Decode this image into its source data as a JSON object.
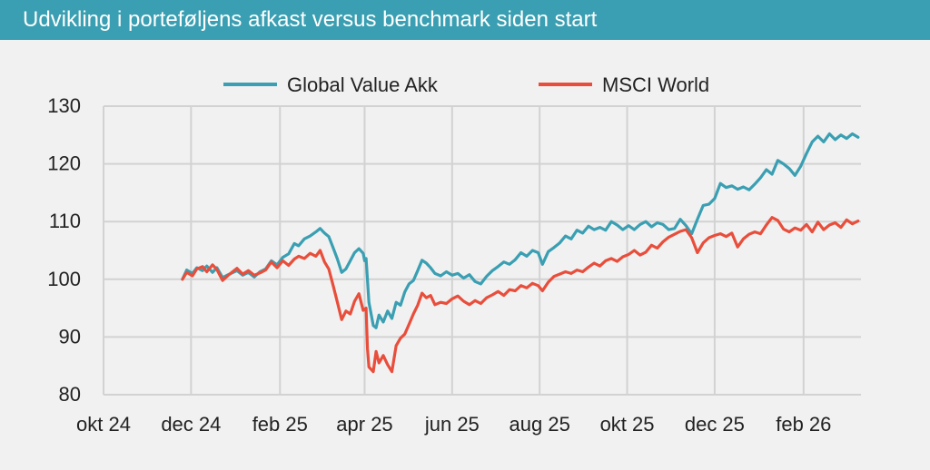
{
  "header": {
    "title": "Udvikling i porteføljens afkast versus benchmark siden start"
  },
  "chart_data": {
    "type": "line",
    "title": "Udvikling i porteføljens afkast versus benchmark siden start",
    "xlabel": "",
    "ylabel": "",
    "ylim": [
      80,
      130
    ],
    "y_ticks": [
      80,
      90,
      100,
      110,
      120,
      130
    ],
    "x_range": [
      "2024-10-01",
      "2026-03-13"
    ],
    "x_ticks": [
      {
        "date": "2024-10-01",
        "label": "okt 24"
      },
      {
        "date": "2024-12-01",
        "label": "dec 24"
      },
      {
        "date": "2025-02-01",
        "label": "feb 25"
      },
      {
        "date": "2025-04-01",
        "label": "apr 25"
      },
      {
        "date": "2025-06-01",
        "label": "jun 25"
      },
      {
        "date": "2025-08-01",
        "label": "aug 25"
      },
      {
        "date": "2025-10-01",
        "label": "okt 25"
      },
      {
        "date": "2025-12-01",
        "label": "dec 25"
      },
      {
        "date": "2026-02-01",
        "label": "feb 26"
      }
    ],
    "grid": true,
    "legend": "top-center",
    "series": [
      {
        "name": "Global Value Akk",
        "color": "#3a9fb2",
        "points": [
          [
            "2024-11-25",
            100.0
          ],
          [
            "2024-11-28",
            101.6
          ],
          [
            "2024-12-02",
            101.0
          ],
          [
            "2024-12-05",
            102.0
          ],
          [
            "2024-12-09",
            101.5
          ],
          [
            "2024-12-12",
            102.3
          ],
          [
            "2024-12-16",
            101.2
          ],
          [
            "2024-12-19",
            102.0
          ],
          [
            "2024-12-23",
            100.3
          ],
          [
            "2024-12-27",
            100.8
          ],
          [
            "2025-01-02",
            101.5
          ],
          [
            "2025-01-06",
            100.7
          ],
          [
            "2025-01-10",
            101.2
          ],
          [
            "2025-01-14",
            100.4
          ],
          [
            "2025-01-18",
            101.3
          ],
          [
            "2025-01-22",
            101.8
          ],
          [
            "2025-01-26",
            103.2
          ],
          [
            "2025-01-30",
            102.5
          ],
          [
            "2025-02-03",
            103.8
          ],
          [
            "2025-02-07",
            104.4
          ],
          [
            "2025-02-11",
            106.2
          ],
          [
            "2025-02-14",
            105.8
          ],
          [
            "2025-02-18",
            107.0
          ],
          [
            "2025-02-22",
            107.5
          ],
          [
            "2025-02-26",
            108.2
          ],
          [
            "2025-03-01",
            108.8
          ],
          [
            "2025-03-04",
            108.0
          ],
          [
            "2025-03-07",
            107.4
          ],
          [
            "2025-03-10",
            105.5
          ],
          [
            "2025-03-13",
            103.5
          ],
          [
            "2025-03-16",
            101.2
          ],
          [
            "2025-03-19",
            101.8
          ],
          [
            "2025-03-22",
            103.2
          ],
          [
            "2025-03-25",
            104.6
          ],
          [
            "2025-03-28",
            105.3
          ],
          [
            "2025-03-31",
            104.5
          ],
          [
            "2025-04-01",
            103.2
          ],
          [
            "2025-04-02",
            103.6
          ],
          [
            "2025-04-04",
            96.0
          ],
          [
            "2025-04-07",
            92.0
          ],
          [
            "2025-04-09",
            91.6
          ],
          [
            "2025-04-11",
            93.8
          ],
          [
            "2025-04-14",
            92.6
          ],
          [
            "2025-04-17",
            94.5
          ],
          [
            "2025-04-20",
            93.2
          ],
          [
            "2025-04-23",
            96.0
          ],
          [
            "2025-04-26",
            95.5
          ],
          [
            "2025-04-29",
            97.8
          ],
          [
            "2025-05-02",
            99.2
          ],
          [
            "2025-05-05",
            99.8
          ],
          [
            "2025-05-08",
            101.5
          ],
          [
            "2025-05-11",
            103.3
          ],
          [
            "2025-05-14",
            102.8
          ],
          [
            "2025-05-17",
            102.0
          ],
          [
            "2025-05-20",
            101.0
          ],
          [
            "2025-05-24",
            100.6
          ],
          [
            "2025-05-28",
            101.3
          ],
          [
            "2025-06-01",
            100.7
          ],
          [
            "2025-06-05",
            101.0
          ],
          [
            "2025-06-09",
            100.2
          ],
          [
            "2025-06-13",
            100.8
          ],
          [
            "2025-06-17",
            99.6
          ],
          [
            "2025-06-21",
            99.2
          ],
          [
            "2025-06-25",
            100.5
          ],
          [
            "2025-06-29",
            101.5
          ],
          [
            "2025-07-03",
            102.2
          ],
          [
            "2025-07-07",
            103.0
          ],
          [
            "2025-07-11",
            102.6
          ],
          [
            "2025-07-15",
            103.4
          ],
          [
            "2025-07-19",
            104.6
          ],
          [
            "2025-07-23",
            104.0
          ],
          [
            "2025-07-27",
            105.0
          ],
          [
            "2025-07-31",
            104.6
          ],
          [
            "2025-08-03",
            102.6
          ],
          [
            "2025-08-07",
            104.8
          ],
          [
            "2025-08-11",
            105.5
          ],
          [
            "2025-08-15",
            106.3
          ],
          [
            "2025-08-19",
            107.5
          ],
          [
            "2025-08-23",
            107.0
          ],
          [
            "2025-08-27",
            108.5
          ],
          [
            "2025-08-31",
            108.0
          ],
          [
            "2025-09-04",
            109.2
          ],
          [
            "2025-09-08",
            108.6
          ],
          [
            "2025-09-12",
            109.0
          ],
          [
            "2025-09-16",
            108.5
          ],
          [
            "2025-09-20",
            110.0
          ],
          [
            "2025-09-24",
            109.4
          ],
          [
            "2025-09-28",
            108.6
          ],
          [
            "2025-10-02",
            109.3
          ],
          [
            "2025-10-06",
            108.6
          ],
          [
            "2025-10-10",
            109.5
          ],
          [
            "2025-10-14",
            110.0
          ],
          [
            "2025-10-18",
            109.1
          ],
          [
            "2025-10-22",
            109.8
          ],
          [
            "2025-10-26",
            109.5
          ],
          [
            "2025-10-30",
            108.6
          ],
          [
            "2025-11-03",
            108.8
          ],
          [
            "2025-11-07",
            110.4
          ],
          [
            "2025-11-11",
            109.3
          ],
          [
            "2025-11-15",
            107.9
          ],
          [
            "2025-11-19",
            110.4
          ],
          [
            "2025-11-23",
            112.8
          ],
          [
            "2025-11-27",
            113.0
          ],
          [
            "2025-12-01",
            114.0
          ],
          [
            "2025-12-05",
            116.6
          ],
          [
            "2025-12-09",
            115.9
          ],
          [
            "2025-12-13",
            116.2
          ],
          [
            "2025-12-17",
            115.6
          ],
          [
            "2025-12-21",
            116.0
          ],
          [
            "2025-12-25",
            115.5
          ],
          [
            "2025-12-29",
            116.5
          ],
          [
            "2026-01-02",
            117.6
          ],
          [
            "2026-01-06",
            119.0
          ],
          [
            "2026-01-10",
            118.2
          ],
          [
            "2026-01-14",
            120.6
          ],
          [
            "2026-01-18",
            120.0
          ],
          [
            "2026-01-22",
            119.2
          ],
          [
            "2026-01-26",
            118.0
          ],
          [
            "2026-01-30",
            119.6
          ],
          [
            "2026-02-03",
            121.8
          ],
          [
            "2026-02-07",
            123.8
          ],
          [
            "2026-02-11",
            124.8
          ],
          [
            "2026-02-15",
            123.8
          ],
          [
            "2026-02-19",
            125.2
          ],
          [
            "2026-02-23",
            124.2
          ],
          [
            "2026-02-27",
            125.0
          ],
          [
            "2026-03-03",
            124.4
          ],
          [
            "2026-03-07",
            125.2
          ],
          [
            "2026-03-11",
            124.6
          ]
        ]
      },
      {
        "name": "MSCI World",
        "color": "#e84e3b",
        "points": [
          [
            "2024-11-25",
            100.0
          ],
          [
            "2024-11-28",
            101.2
          ],
          [
            "2024-12-02",
            100.6
          ],
          [
            "2024-12-05",
            101.8
          ],
          [
            "2024-12-09",
            102.2
          ],
          [
            "2024-12-12",
            101.3
          ],
          [
            "2024-12-16",
            102.5
          ],
          [
            "2024-12-19",
            101.7
          ],
          [
            "2024-12-23",
            99.8
          ],
          [
            "2024-12-27",
            100.7
          ],
          [
            "2025-01-02",
            101.9
          ],
          [
            "2025-01-06",
            100.9
          ],
          [
            "2025-01-10",
            101.5
          ],
          [
            "2025-01-14",
            100.7
          ],
          [
            "2025-01-18",
            101.1
          ],
          [
            "2025-01-22",
            101.6
          ],
          [
            "2025-01-26",
            103.0
          ],
          [
            "2025-01-30",
            102.0
          ],
          [
            "2025-02-03",
            103.2
          ],
          [
            "2025-02-07",
            102.4
          ],
          [
            "2025-02-11",
            103.5
          ],
          [
            "2025-02-14",
            104.0
          ],
          [
            "2025-02-18",
            103.6
          ],
          [
            "2025-02-22",
            104.5
          ],
          [
            "2025-02-26",
            104.0
          ],
          [
            "2025-03-01",
            105.0
          ],
          [
            "2025-03-04",
            103.0
          ],
          [
            "2025-03-07",
            101.8
          ],
          [
            "2025-03-10",
            99.0
          ],
          [
            "2025-03-13",
            96.0
          ],
          [
            "2025-03-16",
            93.0
          ],
          [
            "2025-03-19",
            94.5
          ],
          [
            "2025-03-22",
            94.0
          ],
          [
            "2025-03-25",
            96.2
          ],
          [
            "2025-03-28",
            97.5
          ],
          [
            "2025-03-31",
            94.6
          ],
          [
            "2025-04-01",
            94.8
          ],
          [
            "2025-04-02",
            95.0
          ],
          [
            "2025-04-03",
            88.0
          ],
          [
            "2025-04-04",
            84.8
          ],
          [
            "2025-04-07",
            84.0
          ],
          [
            "2025-04-09",
            87.5
          ],
          [
            "2025-04-11",
            85.5
          ],
          [
            "2025-04-14",
            86.8
          ],
          [
            "2025-04-17",
            85.2
          ],
          [
            "2025-04-20",
            84.0
          ],
          [
            "2025-04-23",
            88.5
          ],
          [
            "2025-04-26",
            89.8
          ],
          [
            "2025-04-29",
            90.5
          ],
          [
            "2025-05-02",
            92.2
          ],
          [
            "2025-05-05",
            94.0
          ],
          [
            "2025-05-08",
            95.5
          ],
          [
            "2025-05-11",
            97.6
          ],
          [
            "2025-05-14",
            96.8
          ],
          [
            "2025-05-17",
            97.2
          ],
          [
            "2025-05-20",
            95.6
          ],
          [
            "2025-05-24",
            96.0
          ],
          [
            "2025-05-28",
            95.8
          ],
          [
            "2025-06-01",
            96.6
          ],
          [
            "2025-06-05",
            97.1
          ],
          [
            "2025-06-09",
            96.2
          ],
          [
            "2025-06-13",
            95.6
          ],
          [
            "2025-06-17",
            96.3
          ],
          [
            "2025-06-21",
            95.8
          ],
          [
            "2025-06-25",
            96.8
          ],
          [
            "2025-06-29",
            97.3
          ],
          [
            "2025-07-03",
            97.9
          ],
          [
            "2025-07-07",
            97.2
          ],
          [
            "2025-07-11",
            98.2
          ],
          [
            "2025-07-15",
            98.0
          ],
          [
            "2025-07-19",
            98.9
          ],
          [
            "2025-07-23",
            98.5
          ],
          [
            "2025-07-27",
            99.3
          ],
          [
            "2025-07-31",
            98.9
          ],
          [
            "2025-08-03",
            98.0
          ],
          [
            "2025-08-07",
            99.5
          ],
          [
            "2025-08-11",
            100.5
          ],
          [
            "2025-08-15",
            100.9
          ],
          [
            "2025-08-19",
            101.3
          ],
          [
            "2025-08-23",
            101.0
          ],
          [
            "2025-08-27",
            101.6
          ],
          [
            "2025-08-31",
            101.3
          ],
          [
            "2025-09-04",
            102.1
          ],
          [
            "2025-09-08",
            102.8
          ],
          [
            "2025-09-12",
            102.3
          ],
          [
            "2025-09-16",
            103.2
          ],
          [
            "2025-09-20",
            103.6
          ],
          [
            "2025-09-24",
            103.1
          ],
          [
            "2025-09-28",
            103.9
          ],
          [
            "2025-10-02",
            104.3
          ],
          [
            "2025-10-06",
            105.0
          ],
          [
            "2025-10-10",
            104.2
          ],
          [
            "2025-10-14",
            104.7
          ],
          [
            "2025-10-18",
            105.9
          ],
          [
            "2025-10-22",
            105.4
          ],
          [
            "2025-10-26",
            106.5
          ],
          [
            "2025-10-30",
            107.3
          ],
          [
            "2025-11-03",
            107.8
          ],
          [
            "2025-11-07",
            108.3
          ],
          [
            "2025-11-11",
            108.6
          ],
          [
            "2025-11-15",
            107.2
          ],
          [
            "2025-11-19",
            104.6
          ],
          [
            "2025-11-23",
            106.3
          ],
          [
            "2025-11-27",
            107.2
          ],
          [
            "2025-12-01",
            107.6
          ],
          [
            "2025-12-05",
            107.9
          ],
          [
            "2025-12-09",
            107.4
          ],
          [
            "2025-12-13",
            108.0
          ],
          [
            "2025-12-17",
            105.6
          ],
          [
            "2025-12-21",
            107.0
          ],
          [
            "2025-12-25",
            107.8
          ],
          [
            "2025-12-29",
            108.2
          ],
          [
            "2026-01-02",
            107.9
          ],
          [
            "2026-01-06",
            109.4
          ],
          [
            "2026-01-10",
            110.7
          ],
          [
            "2026-01-14",
            110.2
          ],
          [
            "2026-01-18",
            108.7
          ],
          [
            "2026-01-22",
            108.2
          ],
          [
            "2026-01-26",
            108.9
          ],
          [
            "2026-01-30",
            108.5
          ],
          [
            "2026-02-03",
            109.5
          ],
          [
            "2026-02-07",
            108.2
          ],
          [
            "2026-02-11",
            109.9
          ],
          [
            "2026-02-15",
            108.6
          ],
          [
            "2026-02-19",
            109.4
          ],
          [
            "2026-02-23",
            109.8
          ],
          [
            "2026-02-27",
            109.0
          ],
          [
            "2026-03-03",
            110.3
          ],
          [
            "2026-03-07",
            109.6
          ],
          [
            "2026-03-11",
            110.1
          ]
        ]
      }
    ]
  }
}
